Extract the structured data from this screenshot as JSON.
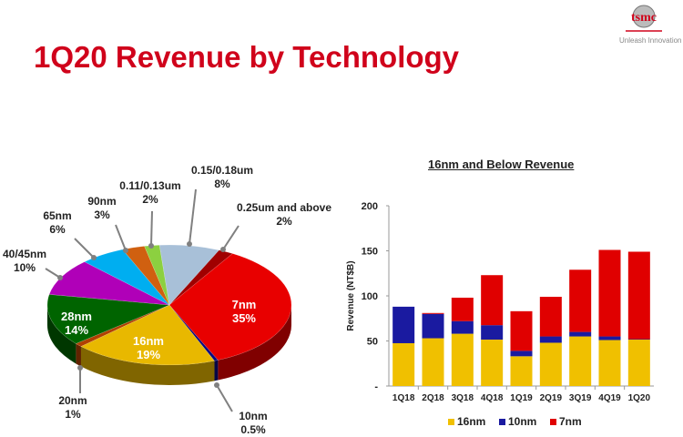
{
  "header": {
    "title": "1Q20 Revenue by Technology",
    "logo_text": "tsmc",
    "tagline": "Unleash Innovation"
  },
  "chart_data": [
    {
      "type": "pie",
      "style": "3d",
      "slices": [
        {
          "label": "0.25um and above",
          "pct_text": "2%",
          "value": 2,
          "color": "#a00000"
        },
        {
          "label": "7nm",
          "pct_text": "35%",
          "value": 35,
          "color": "#e80000"
        },
        {
          "label": "10nm",
          "pct_text": "0.5%",
          "value": 0.5,
          "color": "#0a0a80"
        },
        {
          "label": "16nm",
          "pct_text": "19%",
          "value": 19,
          "color": "#e8b800"
        },
        {
          "label": "20nm",
          "pct_text": "1%",
          "value": 1,
          "color": "#b04000"
        },
        {
          "label": "28nm",
          "pct_text": "14%",
          "value": 14,
          "color": "#006400"
        },
        {
          "label": "40/45nm",
          "pct_text": "10%",
          "value": 10,
          "color": "#b000b8"
        },
        {
          "label": "65nm",
          "pct_text": "6%",
          "value": 6,
          "color": "#00aef0"
        },
        {
          "label": "90nm",
          "pct_text": "3%",
          "value": 3,
          "color": "#d06010"
        },
        {
          "label": "0.11/0.13um",
          "pct_text": "2%",
          "value": 2,
          "color": "#8cd040"
        },
        {
          "label": "0.15/0.18um",
          "pct_text": "8%",
          "value": 8,
          "color": "#a8c0d8"
        }
      ]
    },
    {
      "type": "bar",
      "stacked": true,
      "title": "16nm and Below Revenue",
      "ylabel": "Revenue (NT$B)",
      "ylim": [
        0,
        200
      ],
      "yticks": [
        "-",
        "50",
        "100",
        "150",
        "200"
      ],
      "categories": [
        "1Q18",
        "2Q18",
        "3Q18",
        "4Q18",
        "1Q19",
        "2Q19",
        "3Q19",
        "4Q19",
        "1Q20"
      ],
      "series": [
        {
          "name": "16nm",
          "color": "#f0c000",
          "values": [
            47.5,
            53,
            58,
            51.5,
            33,
            48,
            55,
            51,
            51.5
          ]
        },
        {
          "name": "10nm",
          "color": "#1a1aa0",
          "values": [
            40.5,
            27,
            14,
            16,
            6,
            7,
            5,
            4,
            0.5
          ]
        },
        {
          "name": "7nm",
          "color": "#e00000",
          "values": [
            0,
            1,
            26,
            55.5,
            44,
            44,
            69,
            96,
            97
          ]
        }
      ],
      "legend": "bottom"
    }
  ]
}
